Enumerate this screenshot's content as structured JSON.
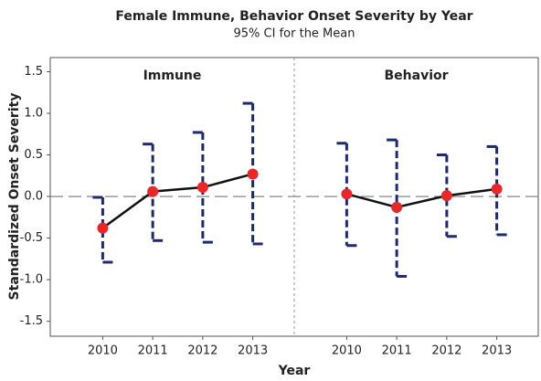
{
  "chart_data": {
    "type": "interval",
    "title": "Female Immune, Behavior Onset Severity by Year",
    "subtitle": "95% CI for the Mean",
    "x_label": "Year",
    "y_label": "Standardized Onset Severity",
    "ylim": [
      -1.68,
      1.67
    ],
    "yticks": [
      1.5,
      {
        "value": 1.0,
        "label": "1.0"
      },
      0.5,
      {
        "value": 0,
        "label": "0.0"
      },
      -0.5,
      {
        "value": -1.0,
        "label": "-1.0"
      },
      -1.5
    ],
    "reference_line": 0,
    "mean_color": "#e8272a",
    "interval_color": "#1f2a6b",
    "line_color": "#111111",
    "panels": [
      {
        "name": "Immune",
        "categories": [
          "2010",
          "2011",
          "2012",
          "2013"
        ],
        "values": [
          -0.38,
          0.06,
          0.11,
          0.27
        ],
        "lower": [
          -0.79,
          -0.53,
          -0.55,
          -0.57
        ],
        "upper": [
          -0.01,
          0.63,
          0.77,
          1.12
        ]
      },
      {
        "name": "Behavior",
        "categories": [
          "2010",
          "2011",
          "2012",
          "2013"
        ],
        "values": [
          0.03,
          -0.13,
          0.01,
          0.09
        ],
        "lower": [
          -0.59,
          -0.96,
          -0.48,
          -0.46
        ],
        "upper": [
          0.64,
          0.68,
          0.5,
          0.6
        ]
      }
    ]
  }
}
